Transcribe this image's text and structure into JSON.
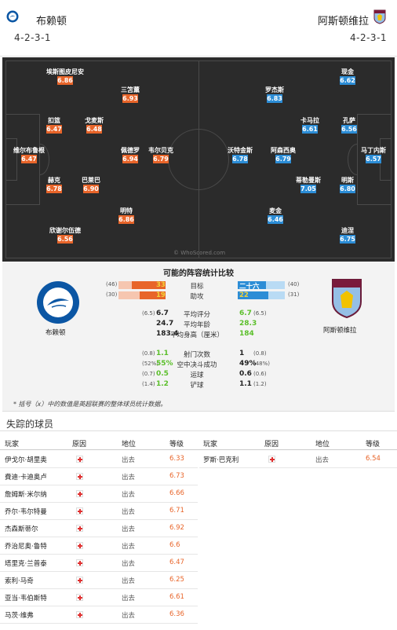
{
  "header": {
    "home_name": "布赖顿",
    "home_formation": "4-2-3-1",
    "away_name": "阿斯顿维拉",
    "away_formation": "4-2-3-1"
  },
  "pitch": {
    "watermark": "© WhoScored.com",
    "home_players": [
      {
        "name": "埃斯图皮尼安",
        "rating": "6.86"
      },
      {
        "name": "三笘薰",
        "rating": "6.93"
      },
      {
        "name": "扣篮",
        "rating": "6.47"
      },
      {
        "name": "戈麦斯",
        "rating": "6.48"
      },
      {
        "name": "维尔布鲁根",
        "rating": "6.47"
      },
      {
        "name": "佩德罗",
        "rating": "6.94"
      },
      {
        "name": "韦尔贝克",
        "rating": "6.79"
      },
      {
        "name": "赫克",
        "rating": "6.78"
      },
      {
        "name": "巴莱巴",
        "rating": "6.90"
      },
      {
        "name": "明特",
        "rating": "6.86"
      },
      {
        "name": "欣谢尔伍德",
        "rating": "6.56"
      }
    ],
    "away_players": [
      {
        "name": "现金",
        "rating": "6.62"
      },
      {
        "name": "罗杰斯",
        "rating": "6.83"
      },
      {
        "name": "卡马拉",
        "rating": "6.61"
      },
      {
        "name": "孔萨",
        "rating": "6.56"
      },
      {
        "name": "沃特金斯",
        "rating": "6.78"
      },
      {
        "name": "阿森西奥",
        "rating": "6.79"
      },
      {
        "name": "马丁内斯",
        "rating": "6.57"
      },
      {
        "name": "蒂勒曼斯",
        "rating": "7.05"
      },
      {
        "name": "明斯",
        "rating": "6.80"
      },
      {
        "name": "麦金",
        "rating": "6.46"
      },
      {
        "name": "迪涅",
        "rating": "6.75"
      }
    ]
  },
  "comparison": {
    "title": "可能的阵容统计比较",
    "home_team": "布赖顿",
    "away_team": "阿斯顿维拉",
    "home_color": "#e8652a",
    "away_color": "#2c8dd6",
    "value_green": "#5bbf2a",
    "bar_rows": [
      {
        "label": "目标",
        "home": "33",
        "home_paren": "(46)",
        "away": "二十六",
        "away_paren": "(40)",
        "home_frac": 0.72,
        "away_frac": 0.6
      },
      {
        "label": "助攻",
        "home": "19",
        "home_paren": "(30)",
        "away": "22",
        "away_paren": "(31)",
        "home_frac": 0.55,
        "away_frac": 0.65
      }
    ],
    "stat_rows": [
      {
        "label": "平均评分",
        "home_paren": "(6.5)",
        "home": "6.7",
        "away": "6.7",
        "away_paren": "(6.5)"
      },
      {
        "label": "平均年龄",
        "home_paren": "",
        "home": "24.7",
        "away": "28.3",
        "away_paren": ""
      },
      {
        "label": "平均身高（厘米）",
        "home_paren": "",
        "home": "183.4",
        "away": "184",
        "away_paren": ""
      }
    ],
    "stat_rows2": [
      {
        "label": "射门次数",
        "home_paren": "(0.8)",
        "home": "1.1",
        "away": "1",
        "away_paren": "(0.8)"
      },
      {
        "label": "空中决斗成功",
        "home_paren": "(52%)",
        "home": "55%",
        "away": "49%",
        "away_paren": "(48%)"
      },
      {
        "label": "运球",
        "home_paren": "(0.7)",
        "home": "0.5",
        "away": "0.6",
        "away_paren": "(0.6)"
      },
      {
        "label": "铲球",
        "home_paren": "(1.4)",
        "home": "1.2",
        "away": "1.1",
        "away_paren": "(1.2)"
      }
    ],
    "note": "* 括号（x）中的数值是英超联赛的整体球员统计数据。"
  },
  "missing": {
    "title": "失踪的球员",
    "headers": [
      "玩家",
      "原因",
      "地位",
      "等级"
    ],
    "home": [
      {
        "name": "伊戈尔·胡里奥",
        "status": "出去",
        "rating": "6.33"
      },
      {
        "name": "費迪·卡迪奥卢",
        "status": "出去",
        "rating": "6.73"
      },
      {
        "name": "詹姆斯·米尔纳",
        "status": "出去",
        "rating": "6.66"
      },
      {
        "name": "乔尔·韦尔特曼",
        "status": "出去",
        "rating": "6.71"
      },
      {
        "name": "杰森斯蒂尔",
        "status": "出去",
        "rating": "6.92"
      },
      {
        "name": "乔治尼奥·鲁特",
        "status": "出去",
        "rating": "6.6"
      },
      {
        "name": "塔里克·兰普泰",
        "status": "出去",
        "rating": "6.47"
      },
      {
        "name": "索利·马奇",
        "status": "出去",
        "rating": "6.25"
      },
      {
        "name": "亚当·韦伯斯特",
        "status": "出去",
        "rating": "6.61"
      },
      {
        "name": "马茨·维弗",
        "status": "出去",
        "rating": "6.36"
      }
    ],
    "away": [
      {
        "name": "罗斯·巴克利",
        "status": "出去",
        "rating": "6.54"
      }
    ]
  }
}
